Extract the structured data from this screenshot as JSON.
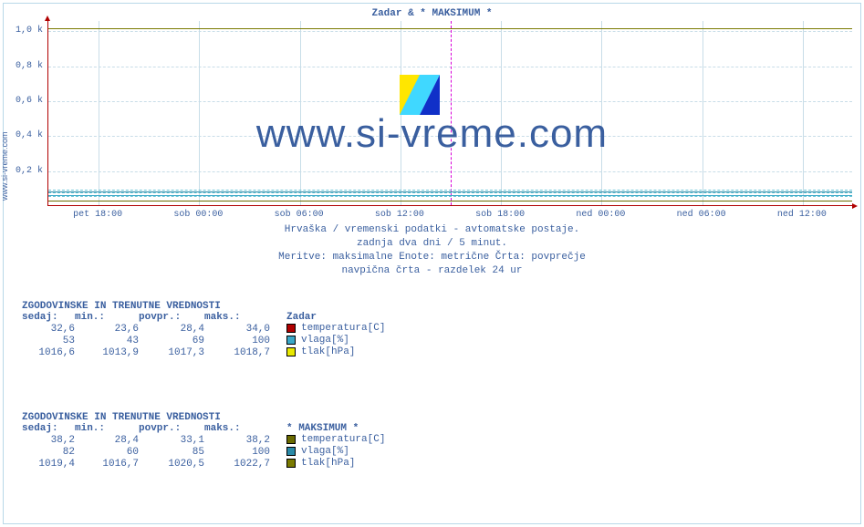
{
  "site_label": "www.si-vreme.com",
  "chart": {
    "title": "Zadar & * MAKSIMUM *",
    "type": "line",
    "background_color": "#ffffff",
    "grid_color": "#c8dde8",
    "axis_color": "#b00000",
    "divider_color": "#d800d8",
    "text_color": "#3a5f9f",
    "title_fontsize": 11,
    "label_fontsize": 10,
    "y": {
      "ticks": [
        {
          "v": 200,
          "label": "0,2 k"
        },
        {
          "v": 400,
          "label": "0,4 k"
        },
        {
          "v": 600,
          "label": "0,6 k"
        },
        {
          "v": 800,
          "label": "0,8 k"
        },
        {
          "v": 1000,
          "label": "1,0 k"
        }
      ],
      "ymin": 0,
      "ymax": 1060
    },
    "x": {
      "labels": [
        "pet 18:00",
        "sob 00:00",
        "sob 06:00",
        "sob 12:00",
        "sob 18:00",
        "ned 00:00",
        "ned 06:00",
        "ned 12:00"
      ],
      "divider_after_index": 3
    },
    "series": [
      {
        "name": "zadar_tlak",
        "color": "#e8e800",
        "approx_value": 1017,
        "style": "solid"
      },
      {
        "name": "maks_tlak",
        "color": "#7a7a00",
        "approx_value": 1020,
        "style": "solid"
      },
      {
        "name": "zadar_vlaga",
        "color": "#3aa8c8",
        "approx_value": 65,
        "style": "solid"
      },
      {
        "name": "maks_vlaga",
        "color": "#2a8aa8",
        "approx_value": 82,
        "style": "solid"
      },
      {
        "name": "zadar_temp",
        "color": "#b00000",
        "approx_value": 29,
        "style": "solid"
      },
      {
        "name": "maks_temp",
        "color": "#6a6a00",
        "approx_value": 33,
        "style": "solid"
      }
    ],
    "dashed_refs": [
      {
        "value": 60,
        "color": "#6fc8d8"
      },
      {
        "value": 78,
        "color": "#6fc8d8"
      },
      {
        "value": 96,
        "color": "#6fc8d8"
      }
    ],
    "watermark_text": "www.si-vreme.com",
    "watermark_fontsize": 44,
    "logo_colors": [
      "#ffe600",
      "#40d8ff",
      "#1030c8"
    ]
  },
  "subtitle_lines": [
    "Hrvaška / vremenski podatki - avtomatske postaje.",
    "zadnja dva dni / 5 minut.",
    "Meritve: maksimalne  Enote: metrične  Črta: povprečje",
    "navpična črta - razdelek 24 ur"
  ],
  "stats": [
    {
      "header": "ZGODOVINSKE IN TRENUTNE VREDNOSTI",
      "col_labels": [
        "sedaj:",
        "min.:",
        "povpr.:",
        "maks.:"
      ],
      "station": "Zadar",
      "rows": [
        {
          "vals": [
            "32,6",
            "23,6",
            "28,4",
            "34,0"
          ],
          "swatch": "#b00000",
          "label": "temperatura[C]"
        },
        {
          "vals": [
            "53",
            "43",
            "69",
            "100"
          ],
          "swatch": "#3aa8c8",
          "label": "vlaga[%]"
        },
        {
          "vals": [
            "1016,6",
            "1013,9",
            "1017,3",
            "1018,7"
          ],
          "swatch": "#e8e800",
          "label": "tlak[hPa]"
        }
      ]
    },
    {
      "header": "ZGODOVINSKE IN TRENUTNE VREDNOSTI",
      "col_labels": [
        "sedaj:",
        "min.:",
        "povpr.:",
        "maks.:"
      ],
      "station": "* MAKSIMUM *",
      "rows": [
        {
          "vals": [
            "38,2",
            "28,4",
            "33,1",
            "38,2"
          ],
          "swatch": "#6a6a00",
          "label": "temperatura[C]"
        },
        {
          "vals": [
            "82",
            "60",
            "85",
            "100"
          ],
          "swatch": "#2a8aa8",
          "label": "vlaga[%]"
        },
        {
          "vals": [
            "1019,4",
            "1016,7",
            "1020,5",
            "1022,7"
          ],
          "swatch": "#7a7a00",
          "label": "tlak[hPa]"
        }
      ]
    }
  ]
}
